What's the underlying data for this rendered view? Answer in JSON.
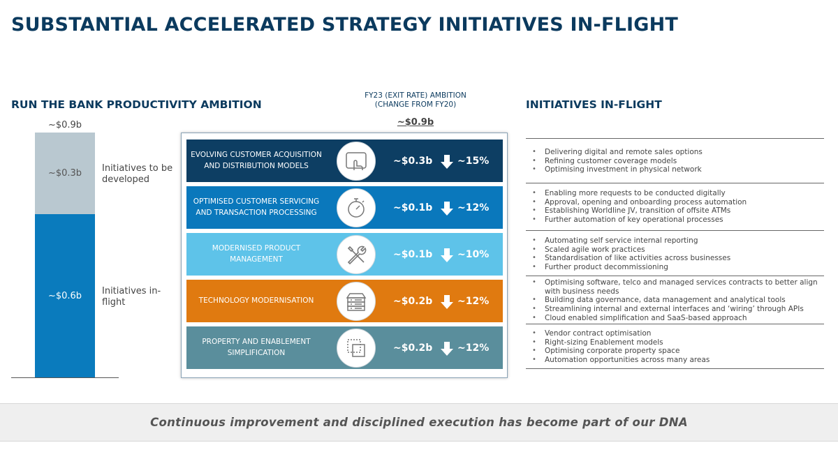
{
  "title": "SUBSTANTIAL ACCELERATED STRATEGY INITIATIVES IN-FLIGHT",
  "run_the_bank": {
    "heading": "RUN THE BANK PRODUCTIVITY AMBITION",
    "total_label": "~$0.9b",
    "to_be_developed": {
      "value_label": "~$0.3b",
      "label": "Initiatives to be developed",
      "color": "#b9c8d0"
    },
    "in_flight": {
      "value_label": "~$0.6b",
      "label": "Initiatives in-flight",
      "color": "#0a7bbd"
    }
  },
  "ambition": {
    "heading": "FY23 (EXIT RATE) AMBITION (CHANGE FROM FY20)",
    "total": "~$0.9b",
    "rows": [
      {
        "name": "EVOLVING CUSTOMER ACQUISITION AND DISTRIBUTION MODELS",
        "icon": "tablet-touch-icon",
        "amount": "~$0.3b",
        "percent": "~15%",
        "color": "#0d3e63"
      },
      {
        "name": "OPTIMISED CUSTOMER SERVICING AND TRANSACTION PROCESSING",
        "icon": "stopwatch-icon",
        "amount": "~$0.1b",
        "percent": "~12%",
        "color": "#0a78bc"
      },
      {
        "name": "MODERNISED PRODUCT MANAGEMENT",
        "icon": "tools-icon",
        "amount": "~$0.1b",
        "percent": "~10%",
        "color": "#5ec3e9"
      },
      {
        "name": "TECHNOLOGY MODERNISATION",
        "icon": "server-icon",
        "amount": "~$0.2b",
        "percent": "~12%",
        "color": "#e07a10"
      },
      {
        "name": "PROPERTY AND ENABLEMENT SIMPLIFICATION",
        "icon": "squares-icon",
        "amount": "~$0.2b",
        "percent": "~12%",
        "color": "#5a8e9c"
      }
    ]
  },
  "initiatives": {
    "heading": "INITIATIVES IN-FLIGHT",
    "groups": [
      [
        "Delivering digital and remote sales options",
        "Refining customer coverage models",
        "Optimising investment in physical network"
      ],
      [
        "Enabling more requests to be conducted digitally",
        "Approval, opening and onboarding process automation",
        "Establishing Worldline JV, transition of offsite ATMs",
        "Further automation of key operational processes"
      ],
      [
        "Automating self service internal reporting",
        "Scaled agile work practices",
        "Standardisation of like activities across businesses",
        "Further product decommissioning"
      ],
      [
        "Optimising software, telco and managed services contracts to better align with business needs",
        "Building data governance, data management and analytical tools",
        "Streamlining internal and external interfaces and ‘wiring’ through APIs",
        "Cloud enabled simplification and SaaS-based approach"
      ],
      [
        "Vendor contract optimisation",
        "Right-sizing Enablement models",
        "Optimising corporate property space",
        "Automation opportunities across many areas"
      ]
    ]
  },
  "footer": "Continuous improvement and disciplined execution has become part of our DNA"
}
